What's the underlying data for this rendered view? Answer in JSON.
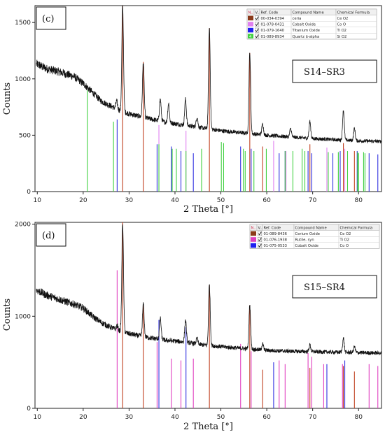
{
  "chart_data": [
    {
      "type": "line",
      "panel_label": "(c)",
      "sample_label": "S14–SR3",
      "xlabel": "2 Theta [°]",
      "ylabel": "Counts",
      "xlim": [
        9.5,
        85
      ],
      "ylim": [
        0,
        1650
      ],
      "xticks": [
        10,
        20,
        30,
        40,
        50,
        60,
        70,
        80
      ],
      "yticks": [
        0,
        500,
        1000,
        1500
      ],
      "line_color": "#111111",
      "background": {
        "x": [
          10,
          12,
          15,
          18,
          20,
          22,
          24,
          26,
          28,
          30,
          34,
          38,
          42,
          46,
          50,
          55,
          60,
          65,
          70,
          75,
          80,
          85
        ],
        "y": [
          1130,
          1090,
          1060,
          1020,
          960,
          880,
          800,
          760,
          720,
          690,
          650,
          615,
          590,
          565,
          540,
          520,
          500,
          485,
          470,
          460,
          450,
          445
        ]
      },
      "peaks": [
        {
          "x": 28.6,
          "y": 1650
        },
        {
          "x": 33.1,
          "y": 1150
        },
        {
          "x": 47.5,
          "y": 1450
        },
        {
          "x": 56.3,
          "y": 1230
        },
        {
          "x": 36.8,
          "y": 820
        },
        {
          "x": 42.3,
          "y": 820
        },
        {
          "x": 59.1,
          "y": 600
        },
        {
          "x": 69.4,
          "y": 620
        },
        {
          "x": 76.7,
          "y": 720
        },
        {
          "x": 79.1,
          "y": 560
        },
        {
          "x": 38.6,
          "y": 780
        },
        {
          "x": 44.8,
          "y": 660
        },
        {
          "x": 65.2,
          "y": 560
        },
        {
          "x": 27.3,
          "y": 800
        }
      ],
      "legend": {
        "headers": [
          "N..",
          "V..",
          "Ref. Code",
          "Compound Name",
          "Chemical Formula"
        ],
        "rows": [
          {
            "num": "",
            "color": "#8B3A1A",
            "ref": "00-034-0394",
            "name": "ceria",
            "formula": "Ce O2"
          },
          {
            "num": "",
            "color": "#E080F0",
            "ref": "01-078-0431",
            "name": "Cobalt Oxide",
            "formula": "Co O"
          },
          {
            "num": "",
            "color": "#2020F0",
            "ref": "01-079-1640",
            "name": "Titanium Oxide",
            "formula": "Ti O2"
          },
          {
            "num": "4",
            "color": "#40D040",
            "ref": "01-089-8934",
            "name": "Quartz $-alpha",
            "formula": "Si O2"
          }
        ]
      },
      "reference_lines": [
        {
          "color": "#C04020",
          "heights": [
            [
              28.6,
              1650
            ],
            [
              33.1,
              1150
            ],
            [
              47.5,
              1450
            ],
            [
              56.3,
              1230
            ],
            [
              59.1,
              400
            ],
            [
              69.4,
              420
            ],
            [
              76.7,
              430
            ],
            [
              79.1,
              360
            ],
            [
              88.0,
              0
            ]
          ]
        },
        {
          "color": "#E080F0",
          "heights": [
            [
              36.5,
              590
            ],
            [
              42.4,
              540
            ],
            [
              61.5,
              450
            ],
            [
              73.1,
              390
            ],
            [
              77.0,
              380
            ],
            [
              64.2,
              360
            ]
          ]
        },
        {
          "color": "#3030E0",
          "heights": [
            [
              27.4,
              640
            ],
            [
              36.1,
              420
            ],
            [
              39.2,
              400
            ],
            [
              41.3,
              360
            ],
            [
              44.0,
              340
            ],
            [
              54.3,
              400
            ],
            [
              56.6,
              380
            ],
            [
              62.7,
              340
            ],
            [
              64.0,
              360
            ],
            [
              69.0,
              360
            ],
            [
              69.8,
              340
            ],
            [
              74.4,
              340
            ],
            [
              76.0,
              360
            ],
            [
              79.7,
              360
            ],
            [
              82.3,
              340
            ],
            [
              84.2,
              330
            ]
          ]
        },
        {
          "color": "#40D040",
          "heights": [
            [
              20.9,
              900
            ],
            [
              26.6,
              620
            ],
            [
              36.5,
              420
            ],
            [
              39.4,
              380
            ],
            [
              40.3,
              380
            ],
            [
              42.4,
              360
            ],
            [
              45.8,
              380
            ],
            [
              50.1,
              440
            ],
            [
              50.6,
              430
            ],
            [
              54.9,
              380
            ],
            [
              55.3,
              360
            ],
            [
              57.2,
              360
            ],
            [
              59.9,
              380
            ],
            [
              64.0,
              360
            ],
            [
              65.7,
              360
            ],
            [
              67.7,
              380
            ],
            [
              68.3,
              360
            ],
            [
              73.4,
              350
            ],
            [
              75.6,
              350
            ],
            [
              77.6,
              360
            ],
            [
              79.8,
              350
            ],
            [
              80.0,
              340
            ],
            [
              81.1,
              350
            ],
            [
              81.4,
              340
            ]
          ]
        }
      ]
    },
    {
      "type": "line",
      "panel_label": "(d)",
      "sample_label": "S15–SR4",
      "xlabel": "2 Theta [°]",
      "ylabel": "Counts",
      "xlim": [
        9.5,
        85
      ],
      "ylim": [
        0,
        2020
      ],
      "xticks": [
        10,
        20,
        30,
        40,
        50,
        60,
        70,
        80
      ],
      "yticks": [
        0,
        1000,
        2000
      ],
      "line_color": "#111111",
      "background": {
        "x": [
          10,
          12,
          15,
          18,
          20,
          22,
          24,
          26,
          28,
          30,
          34,
          38,
          42,
          46,
          50,
          55,
          60,
          65,
          70,
          75,
          80,
          85
        ],
        "y": [
          1280,
          1230,
          1180,
          1130,
          1090,
          1000,
          930,
          880,
          840,
          810,
          770,
          740,
          720,
          690,
          670,
          650,
          630,
          620,
          615,
          610,
          605,
          600
        ]
      },
      "peaks": [
        {
          "x": 28.6,
          "y": 2020
        },
        {
          "x": 33.1,
          "y": 1130
        },
        {
          "x": 47.5,
          "y": 1340
        },
        {
          "x": 56.3,
          "y": 1120
        },
        {
          "x": 36.8,
          "y": 980
        },
        {
          "x": 42.3,
          "y": 960
        },
        {
          "x": 27.4,
          "y": 900
        },
        {
          "x": 69.4,
          "y": 690
        },
        {
          "x": 76.7,
          "y": 760
        },
        {
          "x": 79.1,
          "y": 670
        },
        {
          "x": 59.1,
          "y": 700
        },
        {
          "x": 44.8,
          "y": 760
        }
      ],
      "legend": {
        "headers": [
          "N..",
          "V..",
          "Ref. Code",
          "Compound Name",
          "Chemical Formula"
        ],
        "rows": [
          {
            "num": "",
            "color": "#8B3A1A",
            "ref": "01-089-8436",
            "name": "Cerium Oxide",
            "formula": "Ce O2"
          },
          {
            "num": "",
            "color": "#E040C0",
            "ref": "01-076-1938",
            "name": "Rutile, syn",
            "formula": "Ti O2"
          },
          {
            "num": "",
            "color": "#2020F0",
            "ref": "01-075-0533",
            "name": "Cobalt Oxide",
            "formula": "Co O"
          }
        ]
      },
      "reference_lines": [
        {
          "color": "#C04020",
          "heights": [
            [
              28.6,
              2020
            ],
            [
              33.1,
              1130
            ],
            [
              47.5,
              1340
            ],
            [
              56.3,
              1120
            ],
            [
              59.1,
              420
            ],
            [
              69.4,
              440
            ],
            [
              76.7,
              460
            ],
            [
              79.1,
              400
            ]
          ]
        },
        {
          "color": "#E040C0",
          "heights": [
            [
              27.4,
              1500
            ],
            [
              36.1,
              720
            ],
            [
              39.2,
              540
            ],
            [
              41.3,
              520
            ],
            [
              44.0,
              540
            ],
            [
              54.3,
              700
            ],
            [
              56.6,
              620
            ],
            [
              62.7,
              520
            ],
            [
              64.0,
              480
            ],
            [
              69.0,
              600
            ],
            [
              69.8,
              560
            ],
            [
              72.4,
              480
            ],
            [
              76.5,
              480
            ],
            [
              82.3,
              480
            ],
            [
              84.2,
              460
            ]
          ]
        },
        {
          "color": "#3030E0",
          "heights": [
            [
              36.5,
              960
            ],
            [
              42.4,
              880
            ],
            [
              61.5,
              500
            ],
            [
              73.1,
              480
            ],
            [
              77.0,
              520
            ]
          ]
        }
      ]
    }
  ]
}
